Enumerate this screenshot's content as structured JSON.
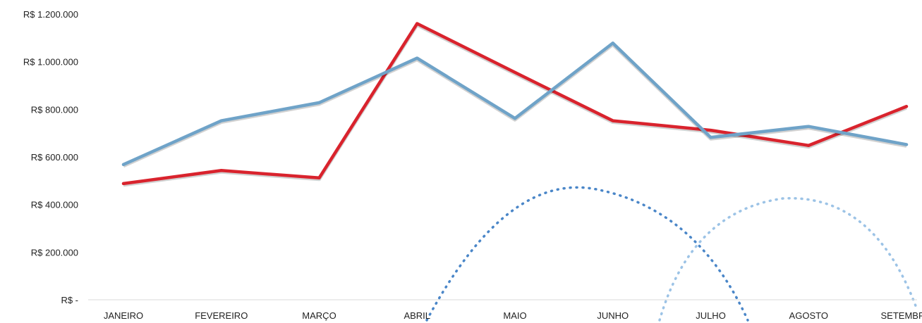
{
  "chart_data": {
    "type": "line",
    "categories": [
      "JANEIRO",
      "FEVEREIRO",
      "MARÇO",
      "ABRIL",
      "MAIO",
      "JUNHO",
      "JULHO",
      "AGOSTO",
      "SETEMBRO"
    ],
    "series": [
      {
        "color": "#d9232d",
        "values": [
          488000,
          543000,
          512000,
          1160000,
          955000,
          752000,
          712000,
          648000,
          812000
        ]
      },
      {
        "color": "#6fa3c8",
        "values": [
          568000,
          752000,
          828000,
          1015000,
          762000,
          1078000,
          682000,
          728000,
          652000
        ]
      }
    ],
    "y_tick_labels": [
      "R$ -",
      "R$ 200.000",
      "R$ 400.000",
      "R$ 600.000",
      "R$ 800.000",
      "R$ 1.000.000",
      "R$ 1.200.000"
    ],
    "ylim": [
      0,
      1200000
    ],
    "grid": false,
    "legend": "none",
    "title": "",
    "xlabel": "",
    "ylabel": ""
  }
}
